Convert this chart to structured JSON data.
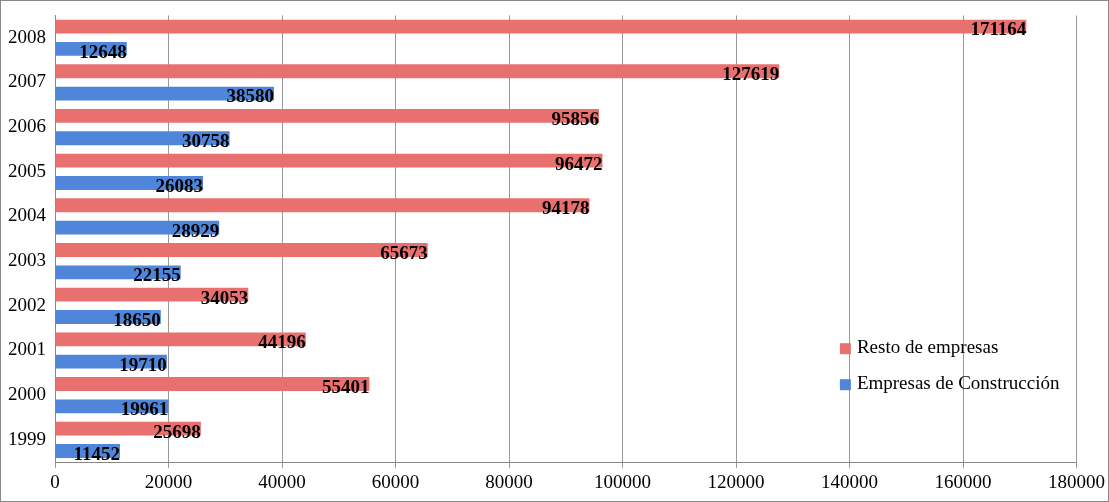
{
  "chart_data": {
    "type": "bar",
    "orientation": "horizontal",
    "categories": [
      "2008",
      "2007",
      "2006",
      "2005",
      "2004",
      "2003",
      "2002",
      "2001",
      "2000",
      "1999"
    ],
    "series": [
      {
        "name": "Resto de empresas",
        "color": "#e8706f",
        "values": [
          171164,
          127619,
          95856,
          96472,
          94178,
          65673,
          34053,
          44196,
          55401,
          25698
        ]
      },
      {
        "name": "Empresas de Construcción",
        "color": "#4f86d9",
        "values": [
          12648,
          38580,
          30758,
          26083,
          28929,
          22155,
          18650,
          19710,
          19961,
          11452
        ]
      }
    ],
    "xlim": [
      0,
      180000
    ],
    "xticks": [
      0,
      20000,
      40000,
      60000,
      80000,
      100000,
      120000,
      140000,
      160000,
      180000
    ],
    "grid": "x",
    "legend": "bottom right",
    "data_labels": true
  }
}
